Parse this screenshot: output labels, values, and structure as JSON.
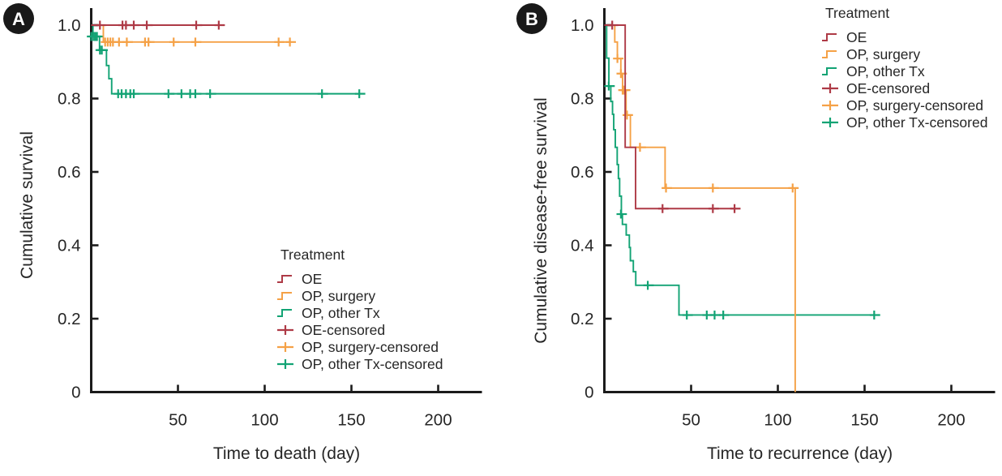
{
  "figure": {
    "type": "kaplan-meier-survival-figure",
    "colors": {
      "background": "#ffffff",
      "axis": "#1b1b1b",
      "text": "#262626",
      "badge_bg": "#191919",
      "badge_text": "#ffffff",
      "oe_red": "#AE3A46",
      "op_surgery_orange": "#F5A146",
      "op_other_tx_green": "#12A374"
    }
  },
  "legend": {
    "title": "Treatment",
    "entries": [
      {
        "label": "OE",
        "glyph": "step",
        "color": "#AE3A46"
      },
      {
        "label": "OP, surgery",
        "glyph": "step",
        "color": "#F5A146"
      },
      {
        "label": "OP, other Tx",
        "glyph": "step",
        "color": "#12A374"
      },
      {
        "label": "OE-censored",
        "glyph": "censor",
        "color": "#AE3A46"
      },
      {
        "label": "OP, surgery-censored",
        "glyph": "censor",
        "color": "#F5A146"
      },
      {
        "label": "OP, other Tx-censored",
        "glyph": "censor",
        "color": "#12A374"
      }
    ]
  },
  "chart_data": [
    {
      "type": "line",
      "subtype": "kaplan-meier-step",
      "panel_label": "A",
      "xlabel": "Time to death (day)",
      "ylabel": "Cumulative survival",
      "xlim": [
        0,
        225
      ],
      "ylim": [
        0,
        1.0
      ],
      "xticks": [
        {
          "v": 50,
          "label": "50"
        },
        {
          "v": 100,
          "label": "100"
        },
        {
          "v": 150,
          "label": "150"
        },
        {
          "v": 200,
          "label": "200"
        }
      ],
      "yticks": [
        {
          "v": 1.0,
          "label": "1.0"
        },
        {
          "v": 0.8,
          "label": "0.8"
        },
        {
          "v": 0.6,
          "label": "0.6"
        },
        {
          "v": 0.4,
          "label": "0.4"
        },
        {
          "v": 0.2,
          "label": "0.2"
        },
        {
          "v": 0,
          "label": "0"
        }
      ],
      "grid": false,
      "legend_position": "inside-bottom-center",
      "series": [
        {
          "name": "OE",
          "color": "#AE3A46",
          "steps": [
            [
              0,
              1
            ],
            [
              77,
              1
            ]
          ],
          "censors": [
            [
              5.5,
              1
            ],
            [
              18.5,
              1
            ],
            [
              20.5,
              1
            ],
            [
              25,
              1
            ],
            [
              32.5,
              1
            ],
            [
              61,
              1
            ],
            [
              74,
              1
            ]
          ]
        },
        {
          "name": "OP, surgery",
          "color": "#F5A146",
          "steps": [
            [
              0,
              1
            ],
            [
              7,
              1
            ],
            [
              7,
              0.954
            ],
            [
              115,
              0.954
            ]
          ],
          "censors": [
            [
              8.5,
              0.954
            ],
            [
              10,
              0.954
            ],
            [
              11.5,
              0.954
            ],
            [
              13,
              0.954
            ],
            [
              16.5,
              0.954
            ],
            [
              21,
              0.954
            ],
            [
              31.5,
              0.954
            ],
            [
              33.5,
              0.954
            ],
            [
              48,
              0.954
            ],
            [
              60.5,
              0.954
            ],
            [
              108.5,
              0.954
            ],
            [
              115,
              0.954
            ]
          ]
        },
        {
          "name": "OP, other Tx",
          "color": "#12A374",
          "steps": [
            [
              0,
              1
            ],
            [
              1,
              1
            ],
            [
              1,
              0.969
            ],
            [
              4.8,
              0.969
            ],
            [
              4.8,
              0.932
            ],
            [
              8.8,
              0.932
            ],
            [
              8.8,
              0.89
            ],
            [
              10.2,
              0.89
            ],
            [
              10.2,
              0.854
            ],
            [
              11.8,
              0.854
            ],
            [
              11.8,
              0.813
            ],
            [
              155,
              0.813
            ]
          ],
          "censors": [
            [
              0.5,
              0.969
            ],
            [
              1.8,
              0.969
            ],
            [
              2.8,
              0.969
            ],
            [
              3.8,
              0.969
            ],
            [
              5.5,
              0.932
            ],
            [
              6.6,
              0.932
            ],
            [
              16,
              0.813
            ],
            [
              18,
              0.813
            ],
            [
              20.5,
              0.813
            ],
            [
              23,
              0.813
            ],
            [
              25,
              0.813
            ],
            [
              45,
              0.813
            ],
            [
              52.5,
              0.813
            ],
            [
              57.5,
              0.813
            ],
            [
              60.5,
              0.813
            ],
            [
              69,
              0.813
            ],
            [
              133.5,
              0.813
            ],
            [
              155,
              0.813
            ]
          ]
        }
      ]
    },
    {
      "type": "line",
      "subtype": "kaplan-meier-step",
      "panel_label": "B",
      "xlabel": "Time to recurrence (day)",
      "ylabel": "Cumulative disease-free survival",
      "xlim": [
        0,
        225
      ],
      "ylim": [
        0,
        1.0
      ],
      "xticks": [
        {
          "v": 50,
          "label": "50"
        },
        {
          "v": 100,
          "label": "100"
        },
        {
          "v": 150,
          "label": "150"
        },
        {
          "v": 200,
          "label": "200"
        }
      ],
      "yticks": [
        {
          "v": 1.0,
          "label": "1.0"
        },
        {
          "v": 0.8,
          "label": "0.8"
        },
        {
          "v": 0.6,
          "label": "0.6"
        },
        {
          "v": 0.4,
          "label": "0.4"
        },
        {
          "v": 0.2,
          "label": "0.2"
        },
        {
          "v": 0,
          "label": "0"
        }
      ],
      "grid": false,
      "legend_position": "outside-top-right",
      "series": [
        {
          "name": "OE",
          "color": "#AE3A46",
          "steps": [
            [
              0,
              1
            ],
            [
              12,
              1
            ],
            [
              12,
              0.667
            ],
            [
              18,
              0.667
            ],
            [
              18,
              0.5
            ],
            [
              76,
              0.5
            ]
          ],
          "censors": [
            [
              5,
              1
            ],
            [
              34,
              0.5
            ],
            [
              63,
              0.5
            ],
            [
              75.5,
              0.5
            ]
          ]
        },
        {
          "name": "OP, surgery",
          "color": "#F5A146",
          "steps": [
            [
              0,
              1
            ],
            [
              6,
              1
            ],
            [
              6,
              0.954
            ],
            [
              7.5,
              0.954
            ],
            [
              7.5,
              0.909
            ],
            [
              9.5,
              0.909
            ],
            [
              9.5,
              0.868
            ],
            [
              10.5,
              0.868
            ],
            [
              10.5,
              0.823
            ],
            [
              12.5,
              0.823
            ],
            [
              12.5,
              0.755
            ],
            [
              15,
              0.755
            ],
            [
              15,
              0.667
            ],
            [
              35,
              0.667
            ],
            [
              35,
              0.556
            ],
            [
              110,
              0.556
            ],
            [
              110,
              0
            ]
          ],
          "censors": [
            [
              8,
              0.909
            ],
            [
              10,
              0.868
            ],
            [
              11,
              0.823
            ],
            [
              12,
              0.823
            ],
            [
              13.5,
              0.755
            ],
            [
              21,
              0.667
            ],
            [
              36,
              0.556
            ],
            [
              63,
              0.556
            ],
            [
              109,
              0.556
            ]
          ]
        },
        {
          "name": "OP, other Tx",
          "color": "#12A374",
          "steps": [
            [
              0,
              1
            ],
            [
              1.3,
              1
            ],
            [
              1.3,
              0.91
            ],
            [
              2.6,
              0.91
            ],
            [
              2.6,
              0.834
            ],
            [
              3.7,
              0.834
            ],
            [
              3.7,
              0.792
            ],
            [
              4.7,
              0.792
            ],
            [
              4.7,
              0.757
            ],
            [
              5.4,
              0.757
            ],
            [
              5.4,
              0.715
            ],
            [
              6.3,
              0.715
            ],
            [
              6.3,
              0.667
            ],
            [
              7.4,
              0.667
            ],
            [
              7.4,
              0.62
            ],
            [
              8.1,
              0.62
            ],
            [
              8.1,
              0.582
            ],
            [
              8.8,
              0.582
            ],
            [
              8.8,
              0.534
            ],
            [
              9.8,
              0.534
            ],
            [
              9.8,
              0.485
            ],
            [
              10.4,
              0.485
            ],
            [
              10.4,
              0.457
            ],
            [
              12.6,
              0.457
            ],
            [
              12.6,
              0.428
            ],
            [
              14.4,
              0.428
            ],
            [
              14.4,
              0.394
            ],
            [
              15,
              0.394
            ],
            [
              15,
              0.358
            ],
            [
              16.7,
              0.358
            ],
            [
              16.7,
              0.328
            ],
            [
              18.1,
              0.328
            ],
            [
              18.1,
              0.291
            ],
            [
              43,
              0.291
            ],
            [
              43,
              0.21
            ],
            [
              156,
              0.21
            ]
          ],
          "censors": [
            [
              3,
              0.834
            ],
            [
              10,
              0.485
            ],
            [
              25.5,
              0.291
            ],
            [
              48,
              0.21
            ],
            [
              59.5,
              0.21
            ],
            [
              64,
              0.21
            ],
            [
              69,
              0.21
            ],
            [
              156,
              0.21
            ]
          ]
        }
      ]
    }
  ]
}
